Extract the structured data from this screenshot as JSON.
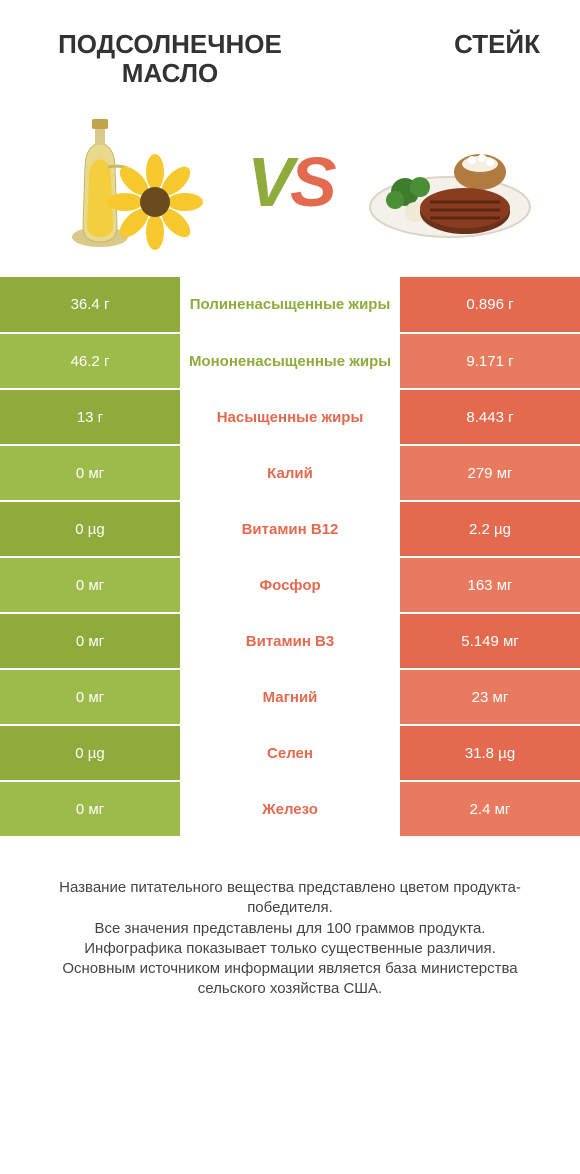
{
  "colors": {
    "green": "#8eab3c",
    "greenAlt": "#9cbb4a",
    "orange": "#e36a4e",
    "orangeAlt": "#e87a5f",
    "midBg": "#ffffff",
    "text": "#333333"
  },
  "header": {
    "left": "Подсолнечное масло",
    "right": "Стейк"
  },
  "vs": {
    "v": "V",
    "s": "S"
  },
  "rows": [
    {
      "left": "36.4 г",
      "mid": "Полиненасыщенные жиры",
      "right": "0.896 г",
      "winner": "left"
    },
    {
      "left": "46.2 г",
      "mid": "Мононенасыщенные жиры",
      "right": "9.171 г",
      "winner": "left"
    },
    {
      "left": "13 г",
      "mid": "Насыщенные жиры",
      "right": "8.443 г",
      "winner": "right"
    },
    {
      "left": "0 мг",
      "mid": "Калий",
      "right": "279 мг",
      "winner": "right"
    },
    {
      "left": "0 µg",
      "mid": "Витамин B12",
      "right": "2.2 µg",
      "winner": "right"
    },
    {
      "left": "0 мг",
      "mid": "Фосфор",
      "right": "163 мг",
      "winner": "right"
    },
    {
      "left": "0 мг",
      "mid": "Витамин B3",
      "right": "5.149 мг",
      "winner": "right"
    },
    {
      "left": "0 мг",
      "mid": "Магний",
      "right": "23 мг",
      "winner": "right"
    },
    {
      "left": "0 µg",
      "mid": "Селен",
      "right": "31.8 µg",
      "winner": "right"
    },
    {
      "left": "0 мг",
      "mid": "Железо",
      "right": "2.4 мг",
      "winner": "right"
    }
  ],
  "footer": {
    "line1": "Название питательного вещества представлено цветом продукта-победителя.",
    "line2": "Все значения представлены для 100 граммов продукта.",
    "line3": "Инфографика показывает только существенные различия.",
    "line4": "Основным источником информации является база министерства сельского хозяйства США."
  }
}
